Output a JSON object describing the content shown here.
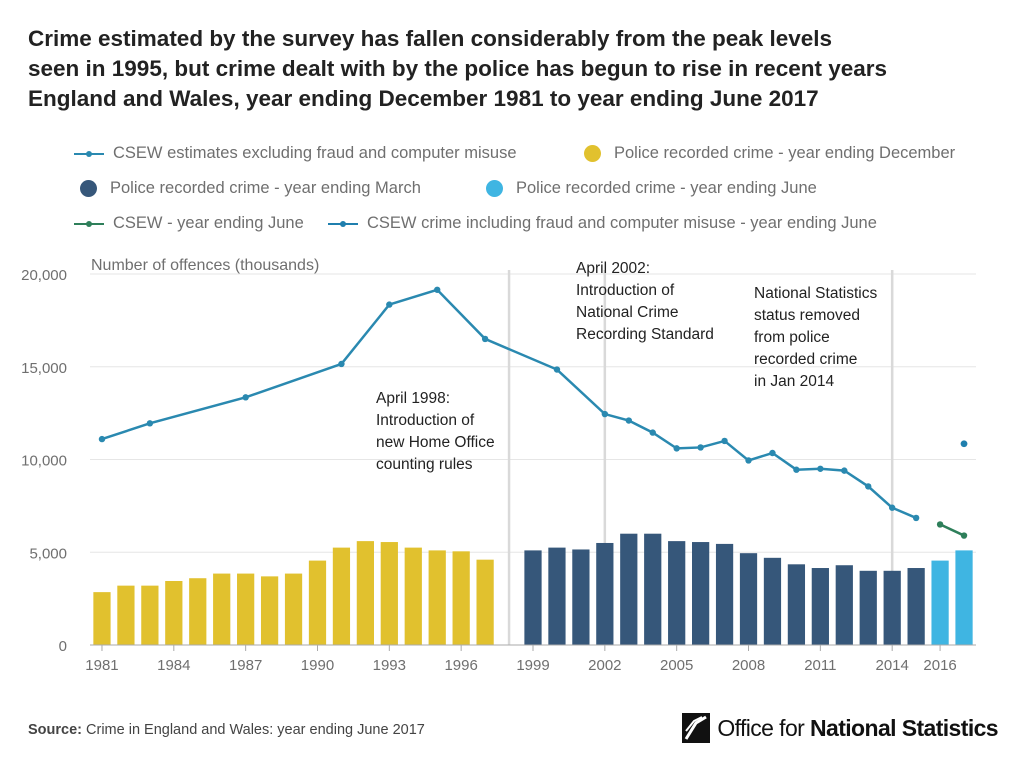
{
  "title": {
    "line1": "Crime estimated by the survey has fallen considerably from the peak levels",
    "line2": "seen in 1995, but crime dealt with by the police has begun to rise in recent years",
    "line3": "England and Wales, year ending December 1981 to year ending June 2017"
  },
  "legend": [
    {
      "label": "CSEW estimates excluding fraud and computer misuse",
      "kind": "line",
      "color": "#2a89b0"
    },
    {
      "label": "Police recorded crime - year ending December",
      "kind": "dot",
      "color": "#e1c12e"
    },
    {
      "label": "Police recorded crime - year ending March",
      "kind": "dot",
      "color": "#36577a"
    },
    {
      "label": "Police recorded crime - year ending June",
      "kind": "dot",
      "color": "#3fb5e2"
    },
    {
      "label": "CSEW - year ending June",
      "kind": "line",
      "color": "#2e7f5a"
    },
    {
      "label": "CSEW crime including fraud and computer misuse - year ending June",
      "kind": "line",
      "color": "#1f7fae"
    }
  ],
  "chart_data": {
    "type": "bar",
    "ylabel": "Number of offences (thousands)",
    "ylim": [
      0,
      20000
    ],
    "yticks": [
      0,
      5000,
      10000,
      15000,
      20000
    ],
    "ytick_labels": [
      "0",
      "5,000",
      "10,000",
      "15,000",
      "20,000"
    ],
    "xlim": [
      1980.5,
      2017.5
    ],
    "xtick_values": [
      1981,
      1984,
      1987,
      1990,
      1993,
      1996,
      1999,
      2002,
      2005,
      2008,
      2011,
      2014,
      2016
    ],
    "xtick_labels": [
      "1981",
      "1984",
      "1987",
      "1990",
      "1993",
      "1996",
      "1999",
      "2002",
      "2005",
      "2008",
      "2011",
      "2014",
      "2016"
    ],
    "grid": true,
    "series": [
      {
        "name": "Police recorded crime - year ending December",
        "type": "bar",
        "color": "#e1c12e",
        "x": [
          1981,
          1982,
          1983,
          1984,
          1985,
          1986,
          1987,
          1988,
          1989,
          1990,
          1991,
          1992,
          1993,
          1994,
          1995,
          1996,
          1997
        ],
        "values": [
          2850,
          3200,
          3200,
          3450,
          3600,
          3850,
          3850,
          3700,
          3850,
          4550,
          5250,
          5600,
          5550,
          5250,
          5100,
          5050,
          4600
        ]
      },
      {
        "name": "Police recorded crime - year ending March",
        "type": "bar",
        "color": "#36577a",
        "x": [
          1999,
          2000,
          2001,
          2002,
          2003,
          2004,
          2005,
          2006,
          2007,
          2008,
          2009,
          2010,
          2011,
          2012,
          2013,
          2014,
          2015
        ],
        "values": [
          5100,
          5250,
          5150,
          5500,
          6000,
          6000,
          5600,
          5550,
          5450,
          4950,
          4700,
          4350,
          4150,
          4300,
          4000,
          4000,
          4150
        ]
      },
      {
        "name": "Police recorded crime - year ending June",
        "type": "bar",
        "color": "#3fb5e2",
        "x": [
          2016,
          2017
        ],
        "values": [
          4550,
          5100
        ]
      },
      {
        "name": "CSEW estimates excluding fraud and computer misuse",
        "type": "line",
        "color": "#2a89b0",
        "x": [
          1981,
          1983,
          1987,
          1991,
          1993,
          1995,
          1997,
          2000,
          2002,
          2003,
          2004,
          2005,
          2006,
          2007,
          2008,
          2009,
          2010,
          2011,
          2012,
          2013,
          2014,
          2015
        ],
        "values": [
          11100,
          11950,
          13350,
          15150,
          18350,
          19150,
          16500,
          14850,
          12450,
          12100,
          11450,
          10600,
          10650,
          11000,
          9950,
          10350,
          9450,
          9500,
          9400,
          8550,
          7400,
          6850
        ]
      },
      {
        "name": "CSEW - year ending June",
        "type": "line",
        "color": "#2e7f5a",
        "x": [
          2016,
          2017
        ],
        "values": [
          6500,
          5900
        ]
      },
      {
        "name": "CSEW crime including fraud and computer misuse - year ending June",
        "type": "point",
        "color": "#1f7fae",
        "x": [
          2017
        ],
        "values": [
          10850
        ]
      }
    ],
    "annotations": [
      {
        "x": 1998,
        "lines": [
          "April 1998:",
          "Introduction of",
          "new Home Office",
          "counting rules"
        ]
      },
      {
        "x": 2002,
        "lines": [
          "April 2002:",
          "Introduction of",
          "National Crime",
          "Recording Standard"
        ]
      },
      {
        "x": 2014,
        "lines": [
          "National Statistics",
          "status removed",
          "from police",
          "recorded crime",
          "in Jan 2014"
        ]
      }
    ]
  },
  "footer": {
    "source_label": "Source:",
    "source_text": "Crime in England and Wales: year ending June 2017"
  },
  "logo": {
    "part1": "Office for ",
    "part2": "National Statistics"
  }
}
